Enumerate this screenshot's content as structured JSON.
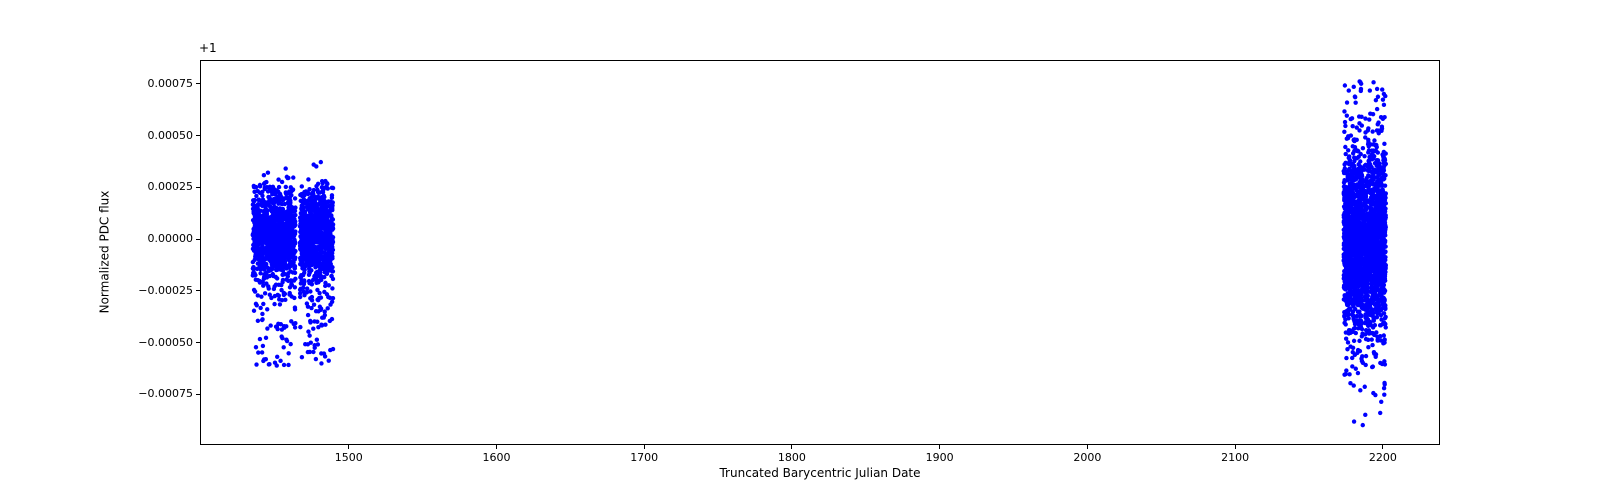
{
  "figure": {
    "background": "#ffffff",
    "spine_color": "#000000",
    "text_color": "#000000"
  },
  "chart_data": {
    "type": "scatter",
    "title": "",
    "xlabel": "Truncated Barycentric Julian Date",
    "ylabel": "Normalized PDC flux",
    "y_offset_text": "+1",
    "xlim": [
      1400,
      2238
    ],
    "ylim": [
      -0.00099,
      0.00086
    ],
    "xticks": [
      1500,
      1600,
      1700,
      1800,
      1900,
      2000,
      2100,
      2200
    ],
    "xtick_labels": [
      "1500",
      "1600",
      "1700",
      "1800",
      "1900",
      "2000",
      "2100",
      "2200"
    ],
    "yticks": [
      0.00075,
      0.0005,
      0.00025,
      0.0,
      -0.00025,
      -0.0005,
      -0.00075
    ],
    "ytick_labels": [
      "0.00075",
      "0.00050",
      "0.00025",
      "0.00000",
      "−0.00025",
      "−0.00050",
      "−0.00075"
    ],
    "grid": false,
    "legend": null,
    "marker": {
      "shape": "circle",
      "color": "#0000ff",
      "radius_px": 2.2
    },
    "clusters": [
      {
        "name": "band-1",
        "x_min": 1435.0,
        "x_max": 1464.0,
        "n_points": 1150,
        "components": [
          {
            "kind": "gauss",
            "frac": 0.8,
            "mean": 2e-05,
            "sigma": 0.000105,
            "clip": [
              -0.00024,
              0.0003
            ]
          },
          {
            "kind": "gauss",
            "frac": 0.16,
            "mean": -6e-05,
            "sigma": 0.00017,
            "clip": [
              -0.00045,
              0.0004
            ]
          },
          {
            "kind": "uniform",
            "frac": 0.04,
            "range": [
              -0.00062,
              -0.00022
            ]
          }
        ]
      },
      {
        "name": "band-2",
        "x_min": 1467.0,
        "x_max": 1489.5,
        "n_points": 1000,
        "components": [
          {
            "kind": "gauss",
            "frac": 0.8,
            "mean": 2e-05,
            "sigma": 0.000105,
            "clip": [
              -0.00024,
              0.0003
            ]
          },
          {
            "kind": "gauss",
            "frac": 0.16,
            "mean": -6e-05,
            "sigma": 0.00017,
            "clip": [
              -0.00045,
              0.0004
            ]
          },
          {
            "kind": "uniform",
            "frac": 0.04,
            "range": [
              -0.00062,
              -0.00022
            ]
          }
        ]
      },
      {
        "name": "band-3a",
        "x_min": 2173.5,
        "x_max": 2186.6,
        "n_points": 1250,
        "components": [
          {
            "kind": "gauss",
            "frac": 0.78,
            "mean": 0.0,
            "sigma": 0.00021,
            "clip": [
              -0.0005,
              0.0005
            ]
          },
          {
            "kind": "gauss",
            "frac": 0.195,
            "mean": 0.0,
            "sigma": 0.0003,
            "clip": [
              -0.00068,
              0.00068
            ]
          },
          {
            "kind": "uniform",
            "frac": 0.013,
            "range": [
              -0.0009,
              -0.0005
            ]
          },
          {
            "kind": "uniform",
            "frac": 0.012,
            "range": [
              0.0005,
              0.00078
            ]
          }
        ]
      },
      {
        "name": "band-3b",
        "x_min": 2187.4,
        "x_max": 2202.0,
        "n_points": 1250,
        "components": [
          {
            "kind": "gauss",
            "frac": 0.78,
            "mean": 0.0,
            "sigma": 0.00021,
            "clip": [
              -0.0005,
              0.0005
            ]
          },
          {
            "kind": "gauss",
            "frac": 0.195,
            "mean": 0.0,
            "sigma": 0.0003,
            "clip": [
              -0.00068,
              0.00068
            ]
          },
          {
            "kind": "uniform",
            "frac": 0.013,
            "range": [
              -0.0009,
              -0.0005
            ]
          },
          {
            "kind": "uniform",
            "frac": 0.012,
            "range": [
              0.0005,
              0.00078
            ]
          }
        ]
      }
    ]
  }
}
